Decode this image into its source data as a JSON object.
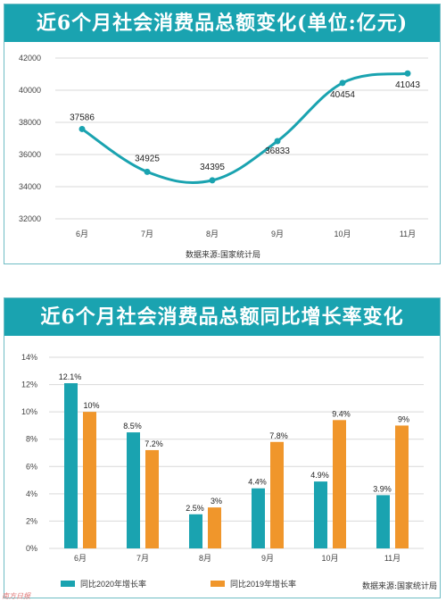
{
  "colors": {
    "teal": "#1aa3b0",
    "line": "#1aa3b0",
    "orange": "#f0962b",
    "title_text": "#ffffff",
    "grid": "#d9d9d9"
  },
  "chart1": {
    "title": "近6个月社会消费品总额变化(单位:亿元)",
    "source": "数据来源:国家统计局"
  },
  "chart2": {
    "title": "近6个月社会消费品总额同比增长率变化",
    "source": "数据来源:国家统计局"
  },
  "watermark": "南方日报",
  "chart_data": [
    {
      "type": "line",
      "title": "近6个月社会消费品总额变化(单位:亿元)",
      "categories": [
        "6月",
        "7月",
        "8月",
        "9月",
        "10月",
        "11月"
      ],
      "series": [
        {
          "values": [
            37586,
            34925,
            34395,
            36833,
            40454,
            41043
          ]
        }
      ],
      "data_labels": [
        "37586",
        "34925",
        "34395",
        "36833",
        "40454",
        "41043"
      ],
      "yticks": [
        "32000",
        "34000",
        "36000",
        "38000",
        "40000",
        "42000"
      ],
      "ylim": [
        32000,
        42000
      ],
      "grid": "horizontal",
      "legend": "none"
    },
    {
      "type": "bar",
      "title": "近6个月社会消费品总额同比增长率变化",
      "categories": [
        "6月",
        "7月",
        "8月",
        "9月",
        "10月",
        "11月"
      ],
      "series": [
        {
          "name": "同比2020年增长率",
          "values": [
            12.1,
            8.5,
            2.5,
            4.4,
            4.9,
            3.9
          ],
          "labels": [
            "12.1%",
            "8.5%",
            "2.5%",
            "4.4%",
            "4.9%",
            "3.9%"
          ]
        },
        {
          "name": "同比2019年增长率",
          "values": [
            10,
            7.2,
            3,
            7.8,
            9.4,
            9
          ],
          "labels": [
            "10%",
            "7.2%",
            "3%",
            "7.8%",
            "9.4%",
            "9%"
          ]
        }
      ],
      "yticks": [
        "0%",
        "2%",
        "4%",
        "6%",
        "8%",
        "10%",
        "12%",
        "14%"
      ],
      "ylim": [
        0,
        14
      ],
      "grid": "horizontal",
      "legend": "bottom-left"
    }
  ]
}
